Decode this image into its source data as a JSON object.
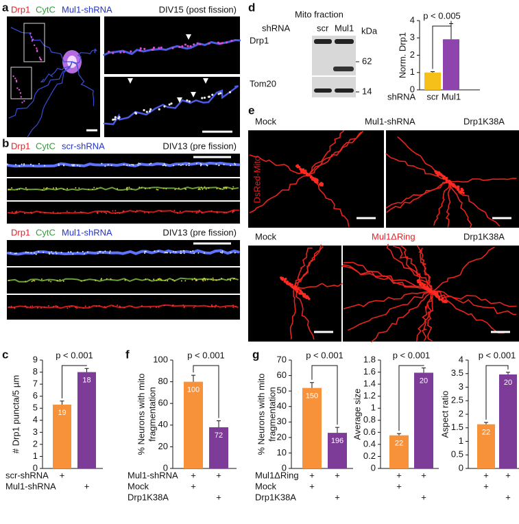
{
  "figure": {
    "a": {
      "letter": "a",
      "stains": [
        "Drp1",
        "CytC",
        "Mul1-shRNA"
      ],
      "stage": "DIV15 (post fission)"
    },
    "b": {
      "letter": "b",
      "groups": [
        {
          "stains": [
            "Drp1",
            "CytC",
            "scr-shRNA"
          ],
          "stage": "DIV13 (pre fission)"
        },
        {
          "stains": [
            "Drp1",
            "CytC",
            "Mul1-shRNA"
          ],
          "stage": "DIV13 (pre fission)"
        }
      ]
    },
    "c": {
      "letter": "c"
    },
    "d": {
      "letter": "d",
      "blot": {
        "title": "Mito fraction",
        "shrna_label": "shRNA",
        "lanes": [
          "scr",
          "Mul1"
        ],
        "unit": "kDa",
        "bands": [
          "Drp1",
          "Tom20"
        ],
        "markers": [
          62,
          14
        ]
      }
    },
    "e": {
      "letter": "e",
      "rows": [
        [
          "Mock",
          "Mul1-shRNA",
          "Drp1K38A"
        ],
        [
          "Mock",
          "Mul1ΔRing",
          "Drp1K38A"
        ]
      ],
      "reporter": "DsRed-Mito"
    },
    "f": {
      "letter": "f"
    },
    "g": {
      "letter": "g"
    }
  },
  "chart_data": [
    {
      "type": "bar",
      "ylabel": [
        "# Drp1 puncta/5 µm"
      ],
      "values": [
        5.3,
        8.0
      ],
      "errors": [
        0.3,
        0.3
      ],
      "n": [
        19,
        18
      ],
      "colors": [
        "#f7923a",
        "#7d3c98"
      ],
      "ylim": [
        0,
        9
      ],
      "yticks": [
        0,
        1,
        2,
        3,
        4,
        5,
        6,
        7,
        8,
        9
      ],
      "annotation": "p < 0.001",
      "row_labels": [
        "scr-shRNA",
        "Mul1-shRNA"
      ],
      "row_marks": [
        [
          "+",
          null
        ],
        [
          null,
          "+"
        ]
      ]
    },
    {
      "type": "bar",
      "ylabel": [
        "% Neurons with mito",
        "fragmentation"
      ],
      "values": [
        80,
        38
      ],
      "errors": [
        6,
        6
      ],
      "n": [
        100,
        72
      ],
      "colors": [
        "#f7923a",
        "#7d3c98"
      ],
      "ylim": [
        0,
        100
      ],
      "yticks": [
        0,
        20,
        40,
        60,
        80,
        100
      ],
      "annotation": "p < 0.001",
      "row_labels": [
        "Mul1-shRNA",
        "Mock",
        "Drp1K38A"
      ],
      "row_marks": [
        [
          "+",
          "+"
        ],
        [
          "+",
          null
        ],
        [
          null,
          "+"
        ]
      ]
    },
    {
      "type": "bar",
      "ylabel": [
        "% Neurons with mito",
        "fragmentation"
      ],
      "values": [
        52,
        23
      ],
      "errors": [
        3.5,
        3.5
      ],
      "n": [
        150,
        196
      ],
      "colors": [
        "#f7923a",
        "#7d3c98"
      ],
      "ylim": [
        0,
        70
      ],
      "yticks": [
        0,
        10,
        20,
        30,
        40,
        50,
        60,
        70
      ],
      "annotation": "p < 0.001",
      "row_labels": [
        "Mul1ΔRing",
        "Mock",
        "Drp1K38A"
      ],
      "row_marks": [
        [
          "+",
          "+"
        ],
        [
          "+",
          null
        ],
        [
          null,
          "+"
        ]
      ]
    },
    {
      "type": "bar",
      "ylabel": [
        "Average size"
      ],
      "values": [
        0.55,
        1.59
      ],
      "errors": [
        0.03,
        0.08
      ],
      "n": [
        22,
        20
      ],
      "colors": [
        "#f7923a",
        "#7d3c98"
      ],
      "ylim": [
        0,
        1.8
      ],
      "yticks": [
        0,
        0.2,
        0.4,
        0.6,
        0.8,
        1,
        1.2,
        1.4,
        1.6,
        1.8
      ],
      "annotation": "p < 0.001",
      "row_marks": [
        [
          "+",
          "+"
        ],
        [
          "+",
          null
        ],
        [
          null,
          "+"
        ]
      ]
    },
    {
      "type": "bar",
      "ylabel": [
        "Aspect ratio"
      ],
      "values": [
        1.63,
        3.47
      ],
      "errors": [
        0.07,
        0.08
      ],
      "n": [
        22,
        20
      ],
      "colors": [
        "#f7923a",
        "#7d3c98"
      ],
      "ylim": [
        0,
        4
      ],
      "yticks": [
        0,
        0.5,
        1,
        1.5,
        2,
        2.5,
        3,
        3.5,
        4
      ],
      "annotation": "p < 0.001",
      "row_marks": [
        [
          "+",
          "+"
        ],
        [
          "+",
          null
        ],
        [
          null,
          "+"
        ]
      ]
    },
    {
      "type": "bar",
      "ylabel": [
        "Norm. Drp1"
      ],
      "xlabel": "shRNA",
      "categories": [
        "scr",
        "Mul1"
      ],
      "values": [
        1.0,
        2.92
      ],
      "errors": [
        0.05,
        0.9
      ],
      "colors": [
        "#f5c01a",
        "#8e44ad"
      ],
      "ylim": [
        0,
        4
      ],
      "yticks": [
        0,
        1,
        2,
        3,
        4
      ],
      "annotation": "p < 0.005"
    }
  ]
}
